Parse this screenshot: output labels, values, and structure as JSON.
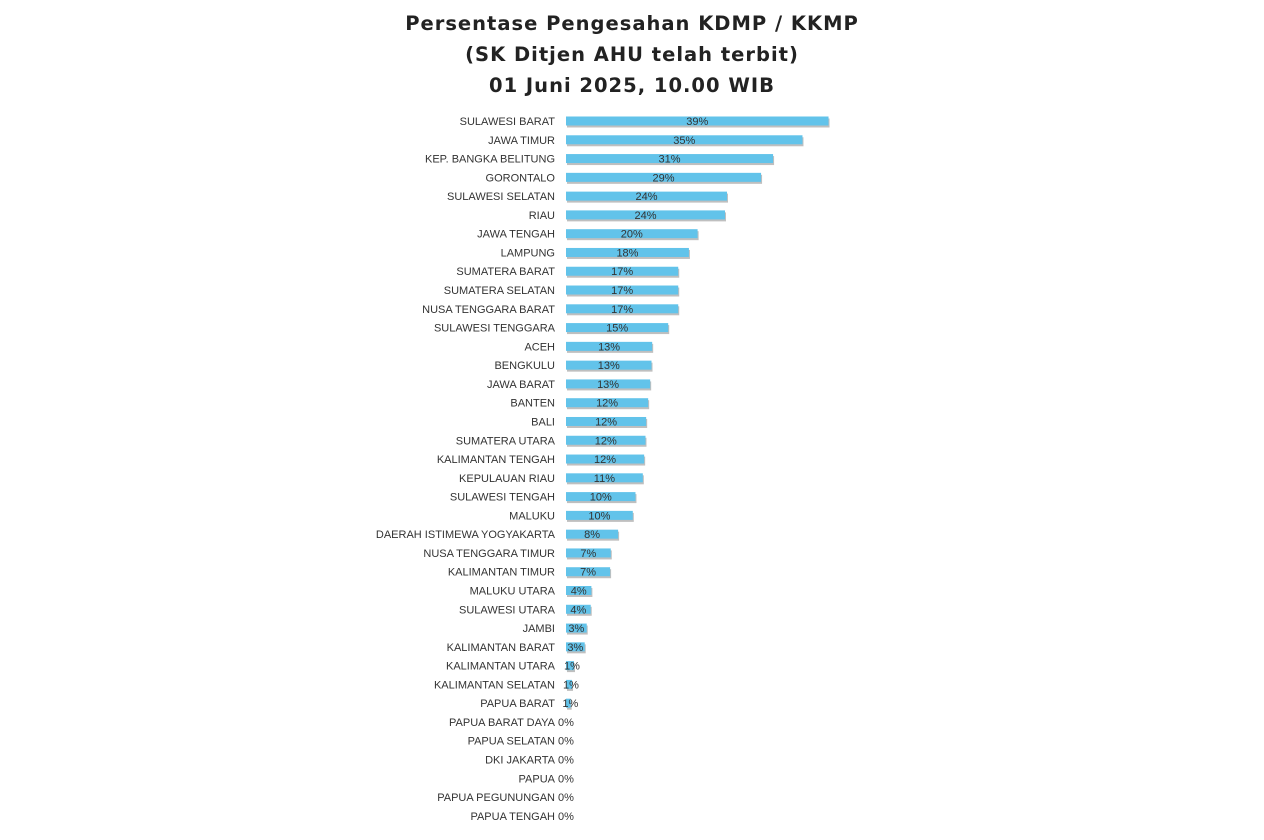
{
  "title": {
    "line1": "Persentase Pengesahan KDMP / KKMP",
    "line2": "(SK Ditjen AHU telah terbit)",
    "line3": "01 Juni 2025, 10.00 WIB"
  },
  "colors": {
    "bar": "#62c3ea",
    "bar_shadow": "#8a8a8a",
    "text": "#333333"
  },
  "chart_data": {
    "type": "bar",
    "orientation": "horizontal",
    "title": "Persentase Pengesahan KDMP / KKMP (SK Ditjen AHU telah terbit) 01 Juni 2025, 10.00 WIB",
    "xlabel": "",
    "ylabel": "",
    "xlim": [
      0,
      40
    ],
    "grid": false,
    "legend": "none",
    "categories": [
      "SULAWESI BARAT",
      "JAWA TIMUR",
      "KEP. BANGKA BELITUNG",
      "GORONTALO",
      "SULAWESI SELATAN",
      "RIAU",
      "JAWA TENGAH",
      "LAMPUNG",
      "SUMATERA BARAT",
      "SUMATERA SELATAN",
      "NUSA TENGGARA BARAT",
      "SULAWESI TENGGARA",
      "ACEH",
      "BENGKULU",
      "JAWA BARAT",
      "BANTEN",
      "BALI",
      "SUMATERA UTARA",
      "KALIMANTAN TENGAH",
      "KEPULAUAN RIAU",
      "SULAWESI TENGAH",
      "MALUKU",
      "DAERAH ISTIMEWA YOGYAKARTA",
      "NUSA TENGGARA TIMUR",
      "KALIMANTAN TIMUR",
      "MALUKU UTARA",
      "SULAWESI UTARA",
      "JAMBI",
      "KALIMANTAN BARAT",
      "KALIMANTAN UTARA",
      "KALIMANTAN SELATAN",
      "PAPUA BARAT",
      "PAPUA BARAT DAYA",
      "PAPUA SELATAN",
      "DKI JAKARTA",
      "PAPUA",
      "PAPUA PEGUNUNGAN",
      "PAPUA TENGAH"
    ],
    "values": [
      39.3,
      35.4,
      31.0,
      29.2,
      24.1,
      23.8,
      19.7,
      18.4,
      16.8,
      16.8,
      16.8,
      15.3,
      12.9,
      12.8,
      12.6,
      12.3,
      12.0,
      11.9,
      11.7,
      11.5,
      10.4,
      10.0,
      7.8,
      6.7,
      6.6,
      3.8,
      3.7,
      3.1,
      2.8,
      1.2,
      0.9,
      0.7,
      0,
      0,
      0,
      0,
      0,
      0
    ],
    "data_labels": [
      "39%",
      "35%",
      "31%",
      "29%",
      "24%",
      "24%",
      "20%",
      "18%",
      "17%",
      "17%",
      "17%",
      "15%",
      "13%",
      "13%",
      "13%",
      "12%",
      "12%",
      "12%",
      "12%",
      "11%",
      "10%",
      "10%",
      "8%",
      "7%",
      "7%",
      "4%",
      "4%",
      "3%",
      "3%",
      "1%",
      "1%",
      "1%",
      "0%",
      "0%",
      "0%",
      "0%",
      "0%",
      "0%"
    ]
  }
}
